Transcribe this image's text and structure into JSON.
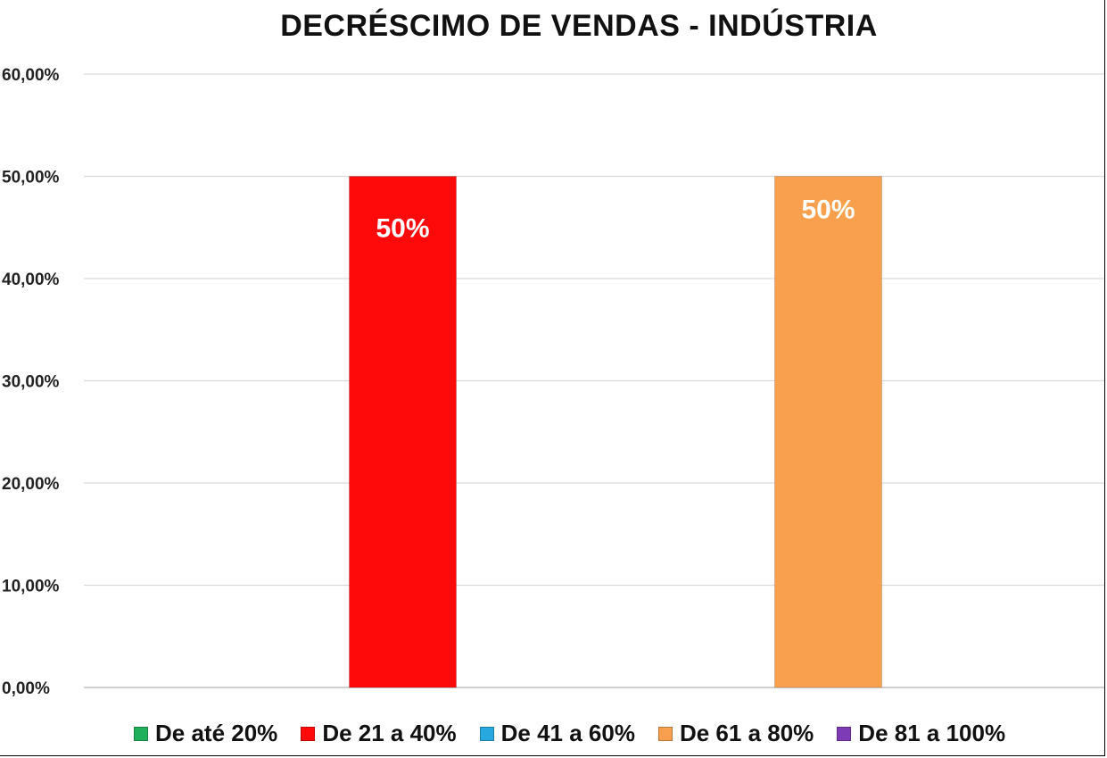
{
  "chart_data": {
    "type": "bar",
    "title": "DECRÉSCIMO  DE VENDAS - INDÚSTRIA",
    "xlabel": "",
    "ylabel": "",
    "ylim": [
      0,
      60
    ],
    "y_ticks": [
      "0,00%",
      "10,00%",
      "20,00%",
      "30,00%",
      "40,00%",
      "50,00%",
      "60,00%"
    ],
    "grid": true,
    "legend_position": "bottom",
    "series": [
      {
        "name": "De até 20%",
        "value": 0,
        "color": "#1fae5a"
      },
      {
        "name": "De 21 a 40%",
        "value": 50,
        "label": "50%",
        "color": "#ff0a0a"
      },
      {
        "name": "De 41 a 60%",
        "value": 0,
        "color": "#27a9df"
      },
      {
        "name": "De 61 a 80%",
        "value": 50,
        "label": "50%",
        "color": "#f9a04f"
      },
      {
        "name": "De 81 a 100%",
        "value": 0,
        "color": "#7d3cb5"
      }
    ]
  }
}
